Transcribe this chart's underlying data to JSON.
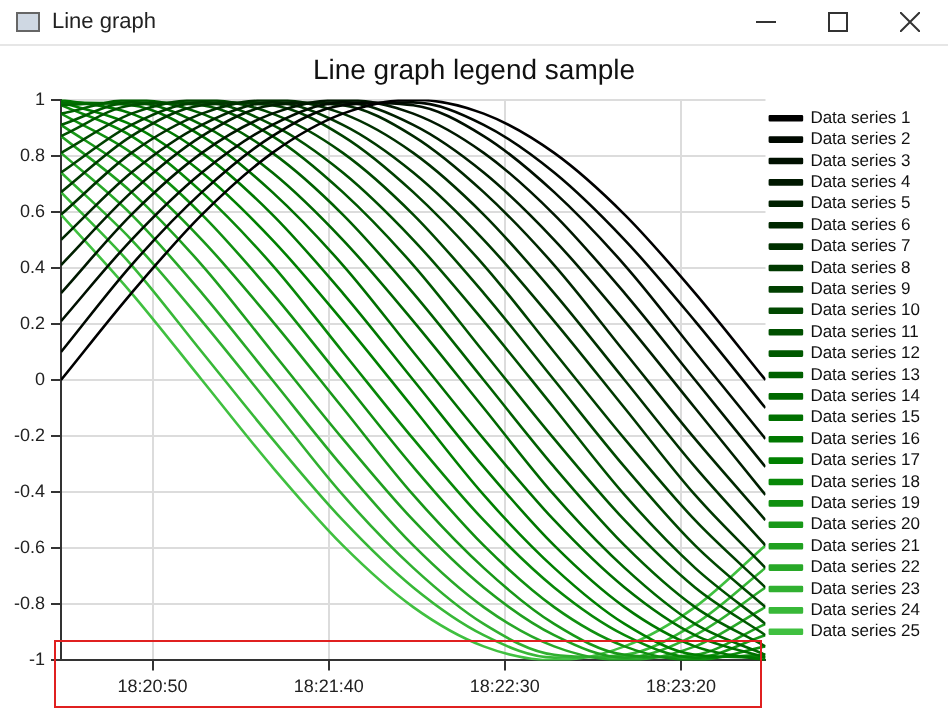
{
  "chart_data": {
    "type": "line",
    "title": "Line graph legend sample",
    "annotations": [
      "Line graph"
    ],
    "x": [
      18.34,
      18.345556,
      18.351111,
      18.356667,
      18.362222,
      18.367778,
      18.373333,
      18.378889,
      18.384444,
      18.39,
      18.395556
    ],
    "xlim": [
      18.34,
      18.395556
    ],
    "xticks": [
      {
        "value": 18.347222,
        "label": "18:20:50"
      },
      {
        "value": 18.361111,
        "label": "18:21:40"
      },
      {
        "value": 18.375,
        "label": "18:22:30"
      },
      {
        "value": 18.388889,
        "label": "18:23:20"
      }
    ],
    "ylim": [
      -1,
      1
    ],
    "yticks": [
      -1,
      -0.8,
      -0.6,
      -0.4,
      -0.2,
      0,
      0.2,
      0.4,
      0.6,
      0.8,
      1
    ],
    "grid": true,
    "legend": "right",
    "marker": "none",
    "line_style": "solid",
    "series": [
      {
        "name": "Data series 1",
        "color": "#000000",
        "values": [
          0,
          0.31,
          0.59,
          0.81,
          0.95,
          1,
          0.95,
          0.81,
          0.59,
          0.31,
          0
        ]
      },
      {
        "name": "Data series 2",
        "color": "#000800",
        "values": [
          0.1,
          0.41,
          0.67,
          0.87,
          0.98,
          0.99,
          0.91,
          0.74,
          0.5,
          0.21,
          -0.1
        ]
      },
      {
        "name": "Data series 3",
        "color": "#001000",
        "values": [
          0.21,
          0.5,
          0.74,
          0.91,
          0.99,
          0.98,
          0.87,
          0.67,
          0.41,
          0.1,
          -0.21
        ]
      },
      {
        "name": "Data series 4",
        "color": "#001800",
        "values": [
          0.31,
          0.59,
          0.81,
          0.95,
          1,
          0.95,
          0.81,
          0.59,
          0.31,
          0,
          -0.31
        ]
      },
      {
        "name": "Data series 5",
        "color": "#002000",
        "values": [
          0.41,
          0.67,
          0.87,
          0.98,
          0.99,
          0.91,
          0.74,
          0.5,
          0.21,
          -0.1,
          -0.41
        ]
      },
      {
        "name": "Data series 6",
        "color": "#002800",
        "values": [
          0.5,
          0.74,
          0.91,
          0.99,
          0.98,
          0.87,
          0.67,
          0.41,
          0.1,
          -0.21,
          -0.5
        ]
      },
      {
        "name": "Data series 7",
        "color": "#003000",
        "values": [
          0.59,
          0.81,
          0.95,
          1,
          0.95,
          0.81,
          0.59,
          0.31,
          0,
          -0.31,
          -0.59
        ]
      },
      {
        "name": "Data series 8",
        "color": "#003800",
        "values": [
          0.67,
          0.87,
          0.98,
          0.99,
          0.91,
          0.74,
          0.5,
          0.21,
          -0.1,
          -0.41,
          -0.67
        ]
      },
      {
        "name": "Data series 9",
        "color": "#004000",
        "values": [
          0.74,
          0.91,
          0.99,
          0.98,
          0.87,
          0.67,
          0.41,
          0.1,
          -0.21,
          -0.5,
          -0.74
        ]
      },
      {
        "name": "Data series 10",
        "color": "#004800",
        "values": [
          0.81,
          0.95,
          1,
          0.95,
          0.81,
          0.59,
          0.31,
          0,
          -0.31,
          -0.59,
          -0.81
        ]
      },
      {
        "name": "Data series 11",
        "color": "#005000",
        "values": [
          0.87,
          0.98,
          0.99,
          0.91,
          0.74,
          0.5,
          0.21,
          -0.1,
          -0.41,
          -0.67,
          -0.87
        ]
      },
      {
        "name": "Data series 12",
        "color": "#005800",
        "values": [
          0.91,
          0.99,
          0.98,
          0.87,
          0.67,
          0.41,
          0.1,
          -0.21,
          -0.5,
          -0.74,
          -0.91
        ]
      },
      {
        "name": "Data series 13",
        "color": "#006000",
        "values": [
          0.95,
          1,
          0.95,
          0.81,
          0.59,
          0.31,
          0,
          -0.31,
          -0.59,
          -0.81,
          -0.95
        ]
      },
      {
        "name": "Data series 14",
        "color": "#006800",
        "values": [
          0.98,
          0.99,
          0.91,
          0.74,
          0.5,
          0.21,
          -0.1,
          -0.41,
          -0.67,
          -0.87,
          -0.98
        ]
      },
      {
        "name": "Data series 15",
        "color": "#007000",
        "values": [
          0.99,
          0.98,
          0.87,
          0.67,
          0.41,
          0.1,
          -0.21,
          -0.5,
          -0.74,
          -0.91,
          -0.99
        ]
      },
      {
        "name": "Data series 16",
        "color": "#007800",
        "values": [
          1,
          0.95,
          0.81,
          0.59,
          0.31,
          0,
          -0.31,
          -0.59,
          -0.81,
          -0.95,
          -1
        ]
      },
      {
        "name": "Data series 17",
        "color": "#008000",
        "values": [
          0.99,
          0.91,
          0.74,
          0.5,
          0.21,
          -0.1,
          -0.41,
          -0.67,
          -0.87,
          -0.98,
          -0.99
        ]
      },
      {
        "name": "Data series 18",
        "color": "#088808",
        "values": [
          0.98,
          0.87,
          0.67,
          0.41,
          0.1,
          -0.21,
          -0.5,
          -0.74,
          -0.91,
          -0.99,
          -0.98
        ]
      },
      {
        "name": "Data series 19",
        "color": "#109010",
        "values": [
          0.95,
          0.81,
          0.59,
          0.31,
          0,
          -0.31,
          -0.59,
          -0.81,
          -0.95,
          -1,
          -0.95
        ]
      },
      {
        "name": "Data series 20",
        "color": "#189818",
        "values": [
          0.91,
          0.74,
          0.5,
          0.21,
          -0.1,
          -0.41,
          -0.67,
          -0.87,
          -0.98,
          -0.99,
          -0.91
        ]
      },
      {
        "name": "Data series 21",
        "color": "#20a020",
        "values": [
          0.87,
          0.67,
          0.41,
          0.1,
          -0.21,
          -0.5,
          -0.74,
          -0.91,
          -0.99,
          -0.98,
          -0.87
        ]
      },
      {
        "name": "Data series 22",
        "color": "#28a828",
        "values": [
          0.81,
          0.59,
          0.31,
          0,
          -0.31,
          -0.59,
          -0.81,
          -0.95,
          -1,
          -0.95,
          -0.81
        ]
      },
      {
        "name": "Data series 23",
        "color": "#30b030",
        "values": [
          0.74,
          0.5,
          0.21,
          -0.1,
          -0.41,
          -0.67,
          -0.87,
          -0.98,
          -0.99,
          -0.91,
          -0.74
        ]
      },
      {
        "name": "Data series 24",
        "color": "#38b838",
        "values": [
          0.67,
          0.41,
          0.1,
          -0.21,
          -0.5,
          -0.74,
          -0.91,
          -0.99,
          -0.98,
          -0.87,
          -0.67
        ]
      },
      {
        "name": "Data series 25",
        "color": "#40c040",
        "values": [
          0.59,
          0.31,
          0,
          -0.31,
          -0.59,
          -0.81,
          -0.95,
          -1,
          -0.95,
          -0.81,
          -0.59
        ]
      }
    ]
  }
}
